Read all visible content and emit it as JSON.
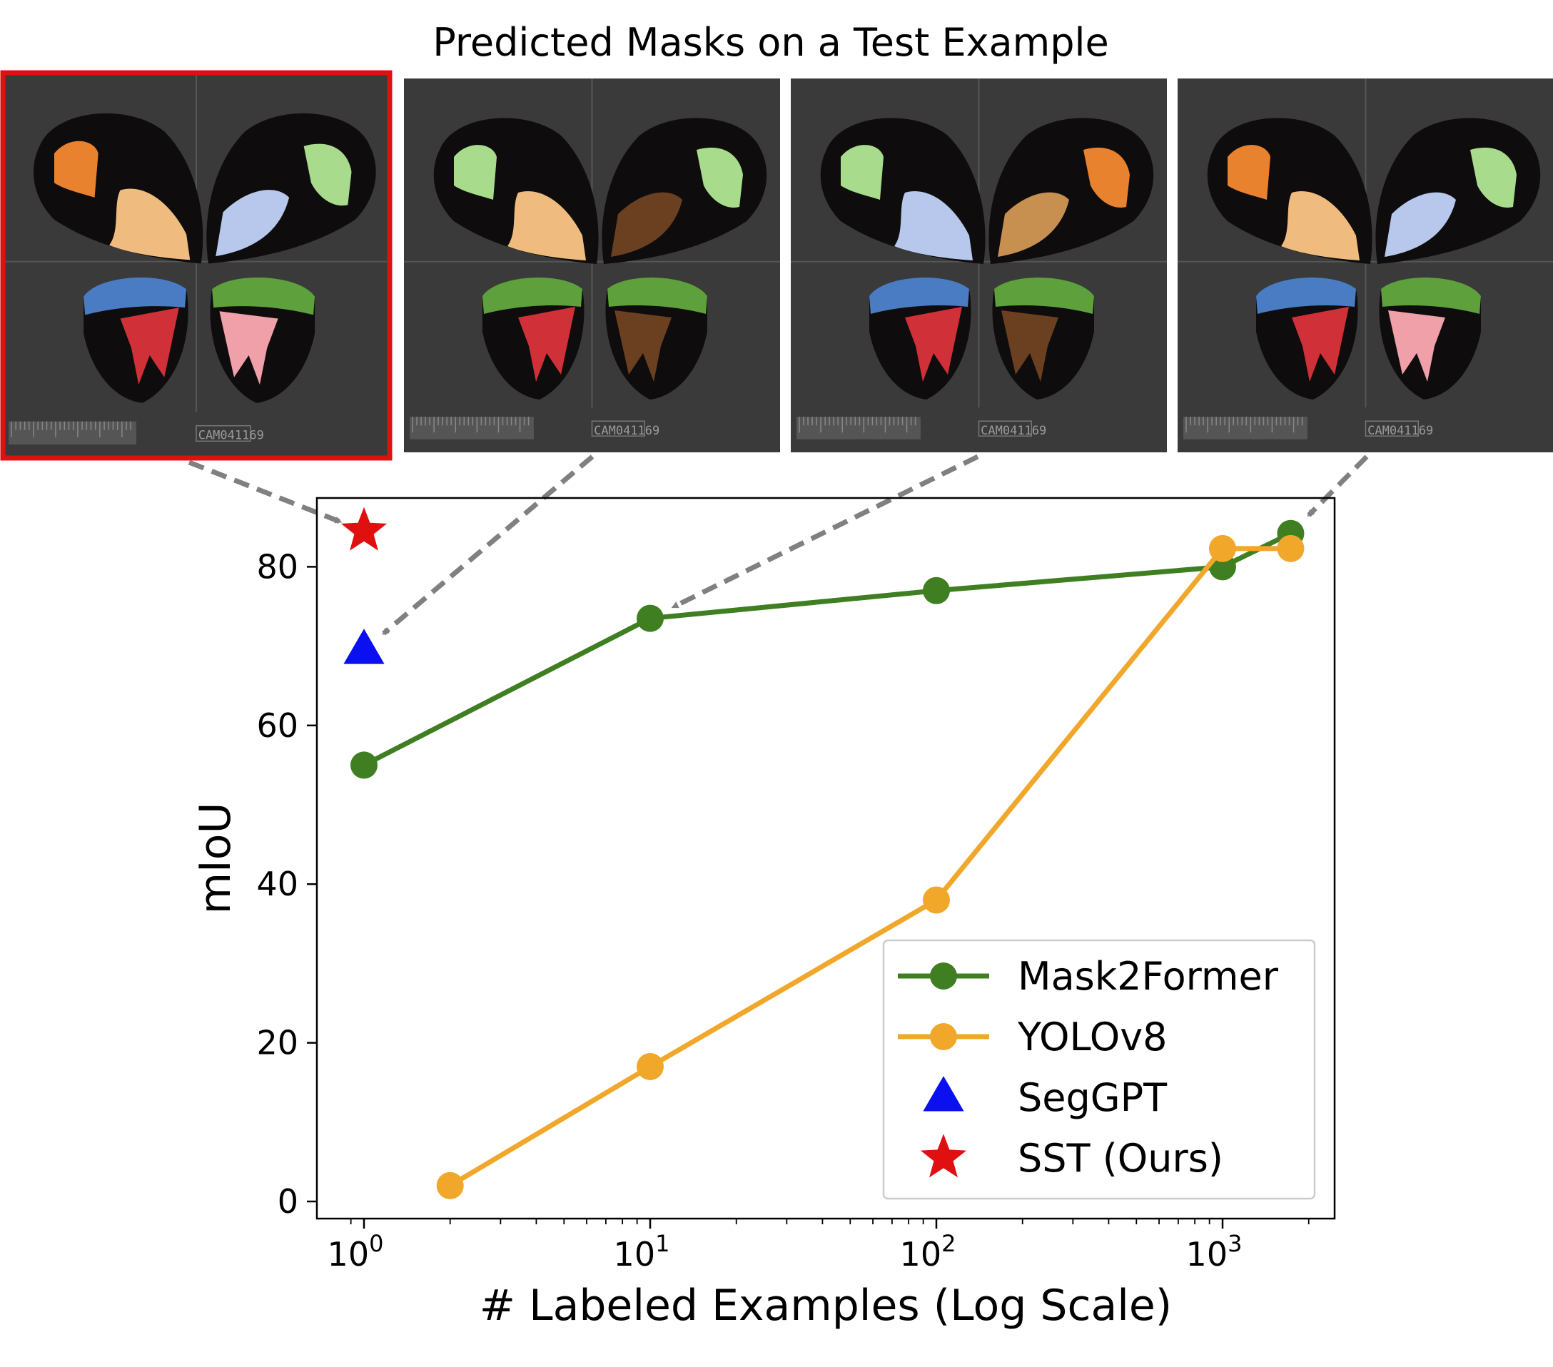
{
  "figure": {
    "title": "Predicted Masks on a Test Example",
    "specimen_code": "CAM041169",
    "panels": [
      {
        "method": "SST (Ours)",
        "highlighted": true
      },
      {
        "method": "SegGPT",
        "highlighted": false
      },
      {
        "method": "Mask2Former",
        "highlighted": false
      },
      {
        "method": "Mask2Former",
        "highlighted": false
      }
    ],
    "mask_colors": {
      "orange": "#e8822e",
      "peach": "#efbb7e",
      "light_green": "#a8dc8c",
      "light_blue": "#b8c8ec",
      "blue": "#4a7cc4",
      "green": "#5ea03c",
      "red": "#d03038",
      "pink": "#f0a0a8",
      "background": "#3a3a3a",
      "wing": "#0e0c0c",
      "highlight": "#e01010"
    }
  },
  "chart_data": {
    "type": "line",
    "xlabel": "# Labeled Examples (Log Scale)",
    "ylabel": "mIoU",
    "xscale": "log",
    "xlim": [
      0.85,
      2400
    ],
    "ylim": [
      -2,
      88
    ],
    "xticks": [
      {
        "value": 1,
        "base": "10",
        "exp": "0"
      },
      {
        "value": 10,
        "base": "10",
        "exp": "1"
      },
      {
        "value": 100,
        "base": "10",
        "exp": "2"
      },
      {
        "value": 1000,
        "base": "10",
        "exp": "3"
      }
    ],
    "yticks": [
      0,
      20,
      40,
      60,
      80
    ],
    "grid": false,
    "legend_position": "bottom-right",
    "series": [
      {
        "name": "Mask2Former",
        "marker": "circle",
        "line": true,
        "color": "#3f7f22",
        "x": [
          1,
          10,
          100,
          1000,
          1730
        ],
        "y": [
          55,
          73.5,
          77,
          80,
          84.2
        ]
      },
      {
        "name": "YOLOv8",
        "marker": "circle",
        "line": true,
        "color": "#f0a72a",
        "x": [
          2,
          10,
          100,
          1000,
          1730
        ],
        "y": [
          2,
          17,
          38,
          82.3,
          82.3
        ]
      },
      {
        "name": "SegGPT",
        "marker": "triangle",
        "line": false,
        "color": "#0a10f0",
        "x": [
          1
        ],
        "y": [
          69.5
        ]
      },
      {
        "name": "SST (Ours)",
        "marker": "star",
        "line": false,
        "color": "#e01010",
        "x": [
          1
        ],
        "y": [
          84.5
        ]
      }
    ]
  }
}
